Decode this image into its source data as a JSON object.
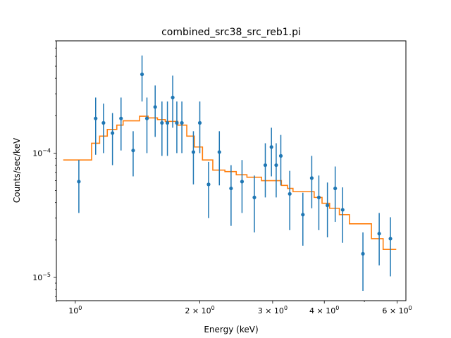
{
  "chart_data": {
    "type": "scatter",
    "title": "combined_src38_src_reb1.pi",
    "xlabel": "Energy (keV)",
    "ylabel": "Counts/sec/keV",
    "xscale": "log",
    "yscale": "log",
    "xlim": [
      0.9,
      6.3
    ],
    "ylim": [
      6.5e-06,
      0.0008
    ],
    "grid": false,
    "x_major_ticks": [
      {
        "value": 1,
        "base": "10",
        "exp": "0",
        "mant": ""
      },
      {
        "value": 2,
        "base": "10",
        "exp": "0",
        "mant": "2"
      },
      {
        "value": 3,
        "base": "10",
        "exp": "0",
        "mant": "3"
      },
      {
        "value": 4,
        "base": "10",
        "exp": "0",
        "mant": "4"
      },
      {
        "value": 6,
        "base": "10",
        "exp": "0",
        "mant": "6"
      }
    ],
    "y_major_ticks": [
      {
        "value": 1e-05,
        "base": "10",
        "exp": "−5"
      },
      {
        "value": 0.0001,
        "base": "10",
        "exp": "−4"
      }
    ],
    "colors": {
      "data": "#1f77b4",
      "model": "#ff7f0e"
    },
    "series": [
      {
        "kind": "errorbar",
        "points": [
          {
            "x": 1.02,
            "y": 5.9e-05,
            "lo": 3.3e-05,
            "hi": 8.8e-05
          },
          {
            "x": 1.12,
            "y": 0.00019,
            "lo": 9.7e-05,
            "hi": 0.00028
          },
          {
            "x": 1.17,
            "y": 0.000175,
            "lo": 0.0001,
            "hi": 0.00025
          },
          {
            "x": 1.23,
            "y": 0.000145,
            "lo": 8e-05,
            "hi": 0.00021
          },
          {
            "x": 1.29,
            "y": 0.00019,
            "lo": 0.000105,
            "hi": 0.00028
          },
          {
            "x": 1.38,
            "y": 0.000105,
            "lo": 6.5e-05,
            "hi": 0.00015
          },
          {
            "x": 1.45,
            "y": 0.00043,
            "lo": 0.00026,
            "hi": 0.00061
          },
          {
            "x": 1.49,
            "y": 0.00019,
            "lo": 0.0001,
            "hi": 0.00028
          },
          {
            "x": 1.56,
            "y": 0.000235,
            "lo": 0.000135,
            "hi": 0.00035
          },
          {
            "x": 1.62,
            "y": 0.000175,
            "lo": 9.5e-05,
            "hi": 0.00026
          },
          {
            "x": 1.67,
            "y": 0.000175,
            "lo": 9.5e-05,
            "hi": 0.00026
          },
          {
            "x": 1.72,
            "y": 0.00028,
            "lo": 0.00016,
            "hi": 0.00042
          },
          {
            "x": 1.76,
            "y": 0.000175,
            "lo": 0.0001,
            "hi": 0.00026
          },
          {
            "x": 1.81,
            "y": 0.000175,
            "lo": 0.0001,
            "hi": 0.00026
          },
          {
            "x": 1.93,
            "y": 0.000102,
            "lo": 5.6e-05,
            "hi": 0.00015
          },
          {
            "x": 2.0,
            "y": 0.000175,
            "lo": 0.0001,
            "hi": 0.00026
          },
          {
            "x": 2.1,
            "y": 5.6e-05,
            "lo": 3e-05,
            "hi": 8.5e-05
          },
          {
            "x": 2.23,
            "y": 0.000102,
            "lo": 5.5e-05,
            "hi": 0.00015
          },
          {
            "x": 2.38,
            "y": 5.2e-05,
            "lo": 2.6e-05,
            "hi": 8e-05
          },
          {
            "x": 2.53,
            "y": 5.9e-05,
            "lo": 3.3e-05,
            "hi": 8.8e-05
          },
          {
            "x": 2.71,
            "y": 4.4e-05,
            "lo": 2.3e-05,
            "hi": 6.6e-05
          },
          {
            "x": 2.88,
            "y": 8e-05,
            "lo": 4.4e-05,
            "hi": 0.00012
          },
          {
            "x": 2.98,
            "y": 0.000112,
            "lo": 6.5e-05,
            "hi": 0.00016
          },
          {
            "x": 3.06,
            "y": 8e-05,
            "lo": 4.4e-05,
            "hi": 0.00012
          },
          {
            "x": 3.14,
            "y": 9.5e-05,
            "lo": 5.5e-05,
            "hi": 0.00014
          },
          {
            "x": 3.3,
            "y": 4.7e-05,
            "lo": 2.4e-05,
            "hi": 7.2e-05
          },
          {
            "x": 3.55,
            "y": 3.2e-05,
            "lo": 1.8e-05,
            "hi": 4.8e-05
          },
          {
            "x": 3.73,
            "y": 6.3e-05,
            "lo": 3.6e-05,
            "hi": 9.5e-05
          },
          {
            "x": 3.88,
            "y": 4.4e-05,
            "lo": 2.4e-05,
            "hi": 6.6e-05
          },
          {
            "x": 4.07,
            "y": 3.8e-05,
            "lo": 2.1e-05,
            "hi": 5.8e-05
          },
          {
            "x": 4.25,
            "y": 5.2e-05,
            "lo": 2.8e-05,
            "hi": 7.8e-05
          },
          {
            "x": 4.43,
            "y": 3.5e-05,
            "lo": 1.9e-05,
            "hi": 5.3e-05
          },
          {
            "x": 4.96,
            "y": 1.55e-05,
            "lo": 7.8e-06,
            "hi": 2.3e-05
          },
          {
            "x": 5.43,
            "y": 2.25e-05,
            "lo": 1.25e-05,
            "hi": 3.3e-05
          },
          {
            "x": 5.78,
            "y": 2.05e-05,
            "lo": 1.02e-05,
            "hi": 3.05e-05
          }
        ]
      },
      {
        "kind": "step",
        "steps": [
          {
            "x0": 0.935,
            "x1": 1.095,
            "y": 8.8e-05
          },
          {
            "x0": 1.095,
            "x1": 1.145,
            "y": 0.00012
          },
          {
            "x0": 1.145,
            "x1": 1.195,
            "y": 0.000137
          },
          {
            "x0": 1.195,
            "x1": 1.26,
            "y": 0.000155
          },
          {
            "x0": 1.26,
            "x1": 1.305,
            "y": 0.000168
          },
          {
            "x0": 1.305,
            "x1": 1.43,
            "y": 0.000182
          },
          {
            "x0": 1.43,
            "x1": 1.5,
            "y": 0.000198
          },
          {
            "x0": 1.5,
            "x1": 1.58,
            "y": 0.000192
          },
          {
            "x0": 1.58,
            "x1": 1.65,
            "y": 0.000186
          },
          {
            "x0": 1.65,
            "x1": 1.77,
            "y": 0.00018
          },
          {
            "x0": 1.77,
            "x1": 1.86,
            "y": 0.000168
          },
          {
            "x0": 1.86,
            "x1": 1.94,
            "y": 0.000137
          },
          {
            "x0": 1.94,
            "x1": 2.03,
            "y": 0.000112
          },
          {
            "x0": 2.03,
            "x1": 2.15,
            "y": 8.8e-05
          },
          {
            "x0": 2.15,
            "x1": 2.3,
            "y": 7.3e-05
          },
          {
            "x0": 2.3,
            "x1": 2.45,
            "y": 7.1e-05
          },
          {
            "x0": 2.45,
            "x1": 2.6,
            "y": 6.7e-05
          },
          {
            "x0": 2.6,
            "x1": 2.82,
            "y": 6.4e-05
          },
          {
            "x0": 2.82,
            "x1": 3.15,
            "y": 6e-05
          },
          {
            "x0": 3.15,
            "x1": 3.26,
            "y": 5.5e-05
          },
          {
            "x0": 3.26,
            "x1": 3.36,
            "y": 5.2e-05
          },
          {
            "x0": 3.36,
            "x1": 3.78,
            "y": 4.9e-05
          },
          {
            "x0": 3.78,
            "x1": 3.95,
            "y": 4.4e-05
          },
          {
            "x0": 3.95,
            "x1": 4.12,
            "y": 3.95e-05
          },
          {
            "x0": 4.12,
            "x1": 4.35,
            "y": 3.6e-05
          },
          {
            "x0": 4.35,
            "x1": 4.6,
            "y": 3.2e-05
          },
          {
            "x0": 4.6,
            "x1": 5.2,
            "y": 2.7e-05
          },
          {
            "x0": 5.2,
            "x1": 5.55,
            "y": 2.05e-05
          },
          {
            "x0": 5.55,
            "x1": 5.97,
            "y": 1.68e-05
          }
        ]
      }
    ]
  }
}
